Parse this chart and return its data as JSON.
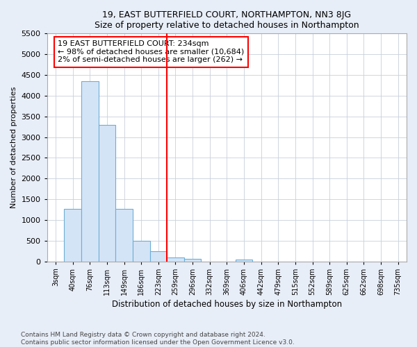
{
  "title1": "19, EAST BUTTERFIELD COURT, NORTHAMPTON, NN3 8JG",
  "title2": "Size of property relative to detached houses in Northampton",
  "xlabel": "Distribution of detached houses by size in Northampton",
  "ylabel": "Number of detached properties",
  "bar_labels": [
    "3sqm",
    "40sqm",
    "76sqm",
    "113sqm",
    "149sqm",
    "186sqm",
    "223sqm",
    "259sqm",
    "296sqm",
    "332sqm",
    "369sqm",
    "406sqm",
    "442sqm",
    "479sqm",
    "515sqm",
    "552sqm",
    "589sqm",
    "625sqm",
    "662sqm",
    "698sqm",
    "735sqm"
  ],
  "bar_values": [
    0,
    1260,
    4350,
    3300,
    1260,
    490,
    240,
    100,
    60,
    0,
    0,
    50,
    0,
    0,
    0,
    0,
    0,
    0,
    0,
    0,
    0
  ],
  "bar_color": "#d4e4f7",
  "bar_edge_color": "#6baed6",
  "vline_bin": 7,
  "vline_color": "red",
  "annotation_text": "19 EAST BUTTERFIELD COURT: 234sqm\n← 98% of detached houses are smaller (10,684)\n2% of semi-detached houses are larger (262) →",
  "annotation_box_color": "white",
  "annotation_box_edge_color": "red",
  "ylim": [
    0,
    5500
  ],
  "yticks": [
    0,
    500,
    1000,
    1500,
    2000,
    2500,
    3000,
    3500,
    4000,
    4500,
    5000,
    5500
  ],
  "footer1": "Contains HM Land Registry data © Crown copyright and database right 2024.",
  "footer2": "Contains public sector information licensed under the Open Government Licence v3.0.",
  "fig_bg_color": "#e8eef8",
  "plot_bg_color": "#ffffff",
  "grid_color": "#c8d0dc"
}
